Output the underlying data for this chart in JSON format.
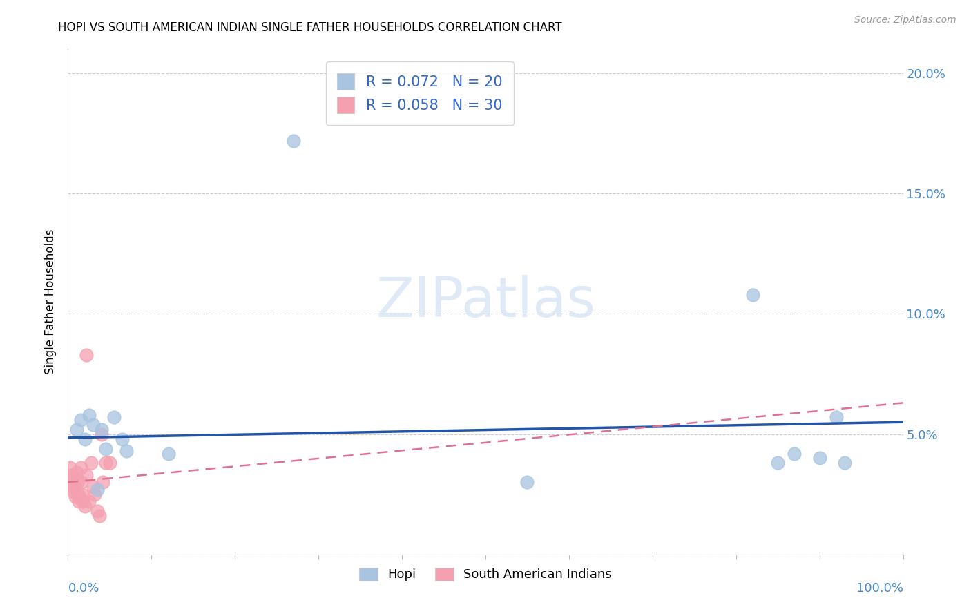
{
  "title": "HOPI VS SOUTH AMERICAN INDIAN SINGLE FATHER HOUSEHOLDS CORRELATION CHART",
  "source": "Source: ZipAtlas.com",
  "ylabel": "Single Father Households",
  "yticks": [
    0.0,
    0.05,
    0.1,
    0.15,
    0.2
  ],
  "ytick_labels": [
    "",
    "5.0%",
    "10.0%",
    "15.0%",
    "20.0%"
  ],
  "xlim": [
    0.0,
    1.0
  ],
  "ylim": [
    0.0,
    0.21
  ],
  "hopi_R": 0.072,
  "hopi_N": 20,
  "sa_R": 0.058,
  "sa_N": 30,
  "hopi_color": "#a8c4e0",
  "sa_color": "#f4a0b0",
  "hopi_line_color": "#2255aa",
  "sa_line_color": "#e07090",
  "watermark_color": "#ccddf0",
  "hopi_x": [
    0.01,
    0.015,
    0.02,
    0.025,
    0.03,
    0.04,
    0.055,
    0.065,
    0.27,
    0.55,
    0.82,
    0.85,
    0.87,
    0.9,
    0.92,
    0.93,
    0.12,
    0.07,
    0.045,
    0.035
  ],
  "hopi_y": [
    0.052,
    0.056,
    0.048,
    0.058,
    0.054,
    0.052,
    0.057,
    0.048,
    0.172,
    0.03,
    0.108,
    0.038,
    0.042,
    0.04,
    0.057,
    0.038,
    0.042,
    0.043,
    0.044,
    0.027
  ],
  "sa_x": [
    0.002,
    0.003,
    0.004,
    0.005,
    0.006,
    0.007,
    0.008,
    0.009,
    0.01,
    0.011,
    0.012,
    0.013,
    0.014,
    0.015,
    0.016,
    0.017,
    0.018,
    0.02,
    0.022,
    0.025,
    0.028,
    0.03,
    0.032,
    0.035,
    0.038,
    0.04,
    0.042,
    0.045,
    0.05,
    0.022
  ],
  "sa_y": [
    0.036,
    0.033,
    0.03,
    0.028,
    0.032,
    0.026,
    0.028,
    0.024,
    0.034,
    0.03,
    0.025,
    0.022,
    0.024,
    0.036,
    0.03,
    0.025,
    0.022,
    0.02,
    0.033,
    0.022,
    0.038,
    0.028,
    0.025,
    0.018,
    0.016,
    0.05,
    0.03,
    0.038,
    0.038,
    0.083
  ],
  "hopi_line_x": [
    0.0,
    1.0
  ],
  "hopi_line_y": [
    0.0485,
    0.055
  ],
  "sa_line_x": [
    0.0,
    1.0
  ],
  "sa_line_y": [
    0.03,
    0.063
  ]
}
